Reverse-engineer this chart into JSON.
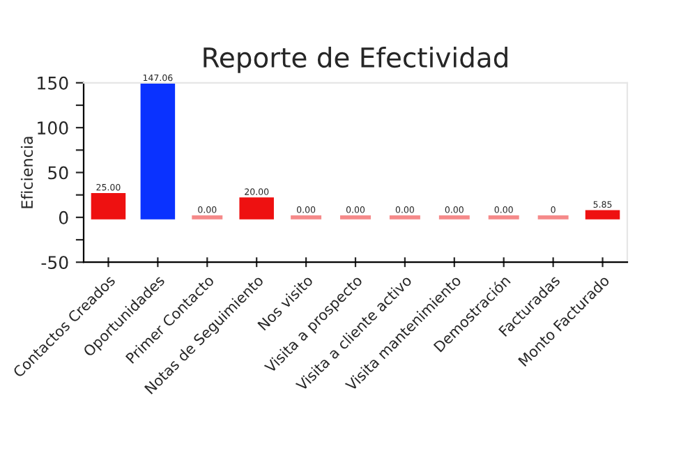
{
  "chart_data": {
    "type": "bar",
    "title": "Reporte de Efectividad",
    "ylabel": "Eficiencia",
    "categories": [
      "Contactos Creados",
      "Oportunidades",
      "Primer Contacto",
      "Notas de Seguimiento",
      "Nos visito",
      "Visita a prospecto",
      "Visita a cliente activo",
      "Visita mantenimiento",
      "Demostración",
      "Facturadas",
      "Monto Facturado"
    ],
    "values": [
      25.0,
      147.06,
      0,
      20.0,
      0,
      0,
      0,
      0,
      0,
      0,
      5.85
    ],
    "value_labels": [
      "25.00",
      "147.06",
      "0.00",
      "20.00",
      "0.00",
      "0.00",
      "0.00",
      "0.00",
      "0.00",
      "0",
      "5.85"
    ],
    "colors": [
      "#ee1111",
      "#0a32ff",
      "#f58a8a",
      "#ee1111",
      "#f58a8a",
      "#f58a8a",
      "#f58a8a",
      "#f58a8a",
      "#f58a8a",
      "#f58a8a",
      "#ee1111"
    ],
    "ylim": [
      -50,
      150
    ],
    "yticks": [
      -50,
      {
        "value": -25,
        "label": null
      },
      0,
      {
        "value": 25,
        "label": null
      },
      50,
      {
        "value": 75,
        "label": null
      },
      100,
      {
        "value": 125,
        "label": null
      },
      150
    ],
    "grid": false,
    "legend": false
  }
}
